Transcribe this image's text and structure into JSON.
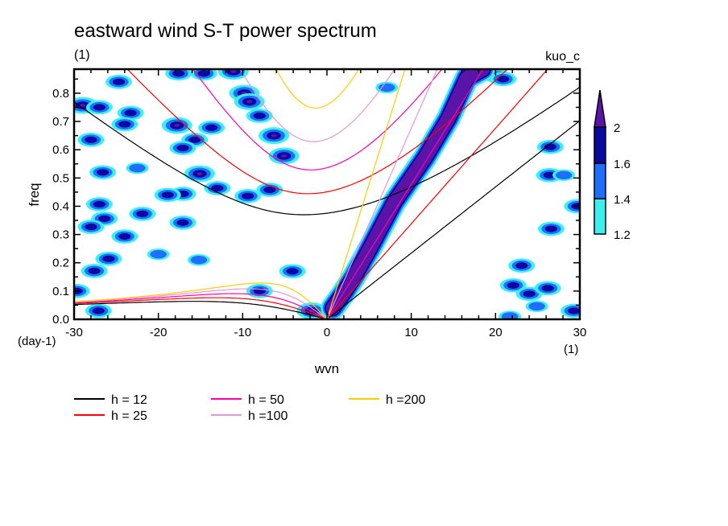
{
  "chart_data": {
    "type": "heatmap",
    "title": "eastward wind S-T power spectrum",
    "subtitle_left": "(1)",
    "subtitle_right": "kuo_c",
    "xlabel": "wvn",
    "ylabel": "freq",
    "x_unit": "(1)",
    "y_unit": "(day-1)",
    "xlim": [
      -30,
      30
    ],
    "ylim": [
      0,
      0.885
    ],
    "x_ticks": [
      "-30",
      "-20",
      "-10",
      "0",
      "10",
      "20",
      "30"
    ],
    "x_tick_values": [
      -30,
      -20,
      -10,
      0,
      10,
      20,
      30
    ],
    "y_ticks": [
      "0.0",
      "0.1",
      "0.2",
      "0.3",
      "0.4",
      "0.5",
      "0.6",
      "0.7",
      "0.8"
    ],
    "y_tick_values": [
      0,
      0.1,
      0.2,
      0.3,
      0.4,
      0.5,
      0.6,
      0.7,
      0.8
    ],
    "grid": false,
    "colorbar": {
      "levels": [
        1.2,
        1.4,
        1.6,
        2
      ],
      "labels": [
        "1.2",
        "1.4",
        "1.6",
        "2"
      ],
      "colors": [
        "#3cf0f0",
        "#1e6eff",
        "#0a0aa0",
        "#5a14a8"
      ],
      "extend": "max"
    },
    "kelvin_band": {
      "peak": 2.2,
      "points": [
        [
          0.7,
          0.04
        ],
        [
          2,
          0.094
        ],
        [
          3.2,
          0.15
        ],
        [
          5,
          0.245
        ],
        [
          8,
          0.415
        ],
        [
          11.6,
          0.57
        ],
        [
          14.4,
          0.71
        ],
        [
          16.6,
          0.854
        ],
        [
          18.5,
          0.885
        ]
      ]
    },
    "patches": [
      [
        -29,
        0.757,
        2
      ],
      [
        -24.7,
        0.84,
        1.6
      ],
      [
        -23.3,
        0.73,
        1.8
      ],
      [
        -24,
        0.69,
        1.6
      ],
      [
        -27,
        0.75,
        1.6
      ],
      [
        -28,
        0.635,
        1.6
      ],
      [
        -17.8,
        0.686,
        2
      ],
      [
        -13.7,
        0.678,
        1.8
      ],
      [
        -15.7,
        0.635,
        1.8
      ],
      [
        -17.1,
        0.606,
        1.6
      ],
      [
        -15.1,
        0.515,
        2
      ],
      [
        -17.6,
        0.87,
        1.6
      ],
      [
        -14.6,
        0.87,
        1.8
      ],
      [
        -11.1,
        0.877,
        2
      ],
      [
        -9.8,
        0.8,
        2
      ],
      [
        -9.2,
        0.77,
        2
      ],
      [
        -8,
        0.72,
        1.8
      ],
      [
        -6.3,
        0.65,
        2
      ],
      [
        -5.1,
        0.578,
        2
      ],
      [
        -17.1,
        0.444,
        1.8
      ],
      [
        -18.9,
        0.44,
        1.6
      ],
      [
        -27,
        0.407,
        1.8
      ],
      [
        -26.4,
        0.356,
        1.6
      ],
      [
        -21.9,
        0.373,
        1.6
      ],
      [
        -17.1,
        0.342,
        1.8
      ],
      [
        -28,
        0.327,
        1.6
      ],
      [
        -24,
        0.293,
        1.6
      ],
      [
        -25.9,
        0.214,
        1.6
      ],
      [
        -27.6,
        0.171,
        1.6
      ],
      [
        -13,
        0.464,
        1.6
      ],
      [
        -9.4,
        0.436,
        1.6
      ],
      [
        -6.8,
        0.458,
        1.6
      ],
      [
        -1.8,
        0.03,
        2
      ],
      [
        -8,
        0.1,
        1.6
      ],
      [
        -4.1,
        0.17,
        1.6
      ],
      [
        -29.7,
        0.1,
        1.6
      ],
      [
        -27.1,
        0.03,
        1.6
      ],
      [
        -15.2,
        0.21,
        1.4
      ],
      [
        -20,
        0.23,
        1.4
      ],
      [
        -22.5,
        0.535,
        1.4
      ],
      [
        -26.6,
        0.52,
        1.6
      ],
      [
        20.2,
        0.86,
        1.8
      ],
      [
        20.9,
        0.85,
        1.8
      ],
      [
        26.5,
        0.61,
        1.6
      ],
      [
        26.4,
        0.51,
        1.6
      ],
      [
        28.1,
        0.51,
        1.4
      ],
      [
        26.6,
        0.32,
        1.6
      ],
      [
        23.1,
        0.19,
        1.6
      ],
      [
        22.1,
        0.12,
        1.6
      ],
      [
        24,
        0.09,
        1.8
      ],
      [
        26.2,
        0.11,
        1.6
      ],
      [
        29.3,
        0.03,
        1.8
      ],
      [
        24.9,
        0.046,
        1.4
      ],
      [
        21.7,
        0.01,
        1.4
      ],
      [
        7.1,
        0.82,
        1.4
      ],
      [
        29.7,
        0.4,
        1.6
      ]
    ],
    "dispersion_curves": [
      {
        "label": "h = 12",
        "h": 12,
        "color": "#000000"
      },
      {
        "label": "h = 25",
        "h": 25,
        "color": "#ff0000"
      },
      {
        "label": "h = 50",
        "h": 50,
        "color": "#ff00aa"
      },
      {
        "label": "h =100",
        "h": 100,
        "color": "#dd99dd"
      },
      {
        "label": "h =200",
        "h": 200,
        "color": "#ffcc00"
      }
    ]
  }
}
